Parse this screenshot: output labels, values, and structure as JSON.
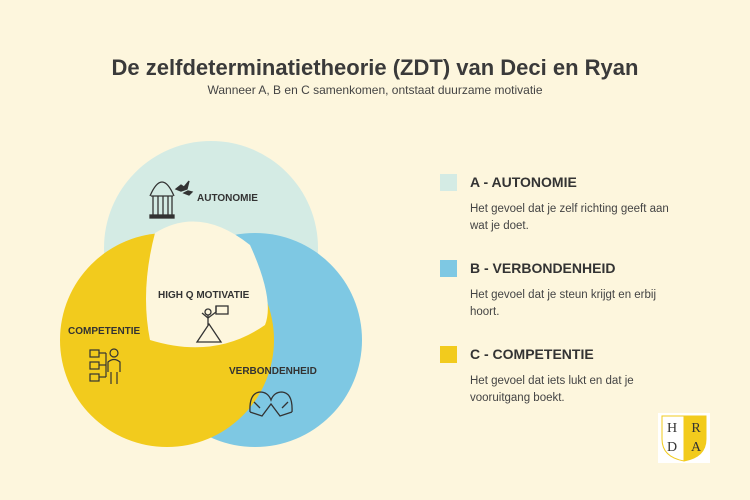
{
  "title": "De zelfdeterminatietheorie (ZDT) van Deci en Ryan",
  "subtitle": "Wanneer A, B en C samenkomen, ontstaat duurzame motivatie",
  "diagram": {
    "labels": {
      "autonomy": "AUTONOMIE",
      "center": "HIGH Q MOTIVATIE",
      "competence": "COMPETENTIE",
      "relatedness": "VERBONDENHEID"
    },
    "icons": [
      "birdcage-icon",
      "summit-flag-icon",
      "organization-chart-icon",
      "heart-hands-icon"
    ]
  },
  "legend": [
    {
      "heading": "A - AUTONOMIE",
      "text": "Het gevoel dat je zelf richting geeft aan wat je doet.",
      "color": "#d4ebe4"
    },
    {
      "heading": "B - VERBONDENHEID",
      "text": "Het gevoel dat je steun krijgt en erbij hoort.",
      "color": "#7ec8e3"
    },
    {
      "heading": "C - COMPETENTIE",
      "text": "Het gevoel dat iets lukt en dat je vooruitgang boekt.",
      "color": "#f2cb1d"
    }
  ],
  "logo": {
    "letters": [
      "H",
      "R",
      "D",
      "A"
    ],
    "color": "#f2cb1d"
  }
}
